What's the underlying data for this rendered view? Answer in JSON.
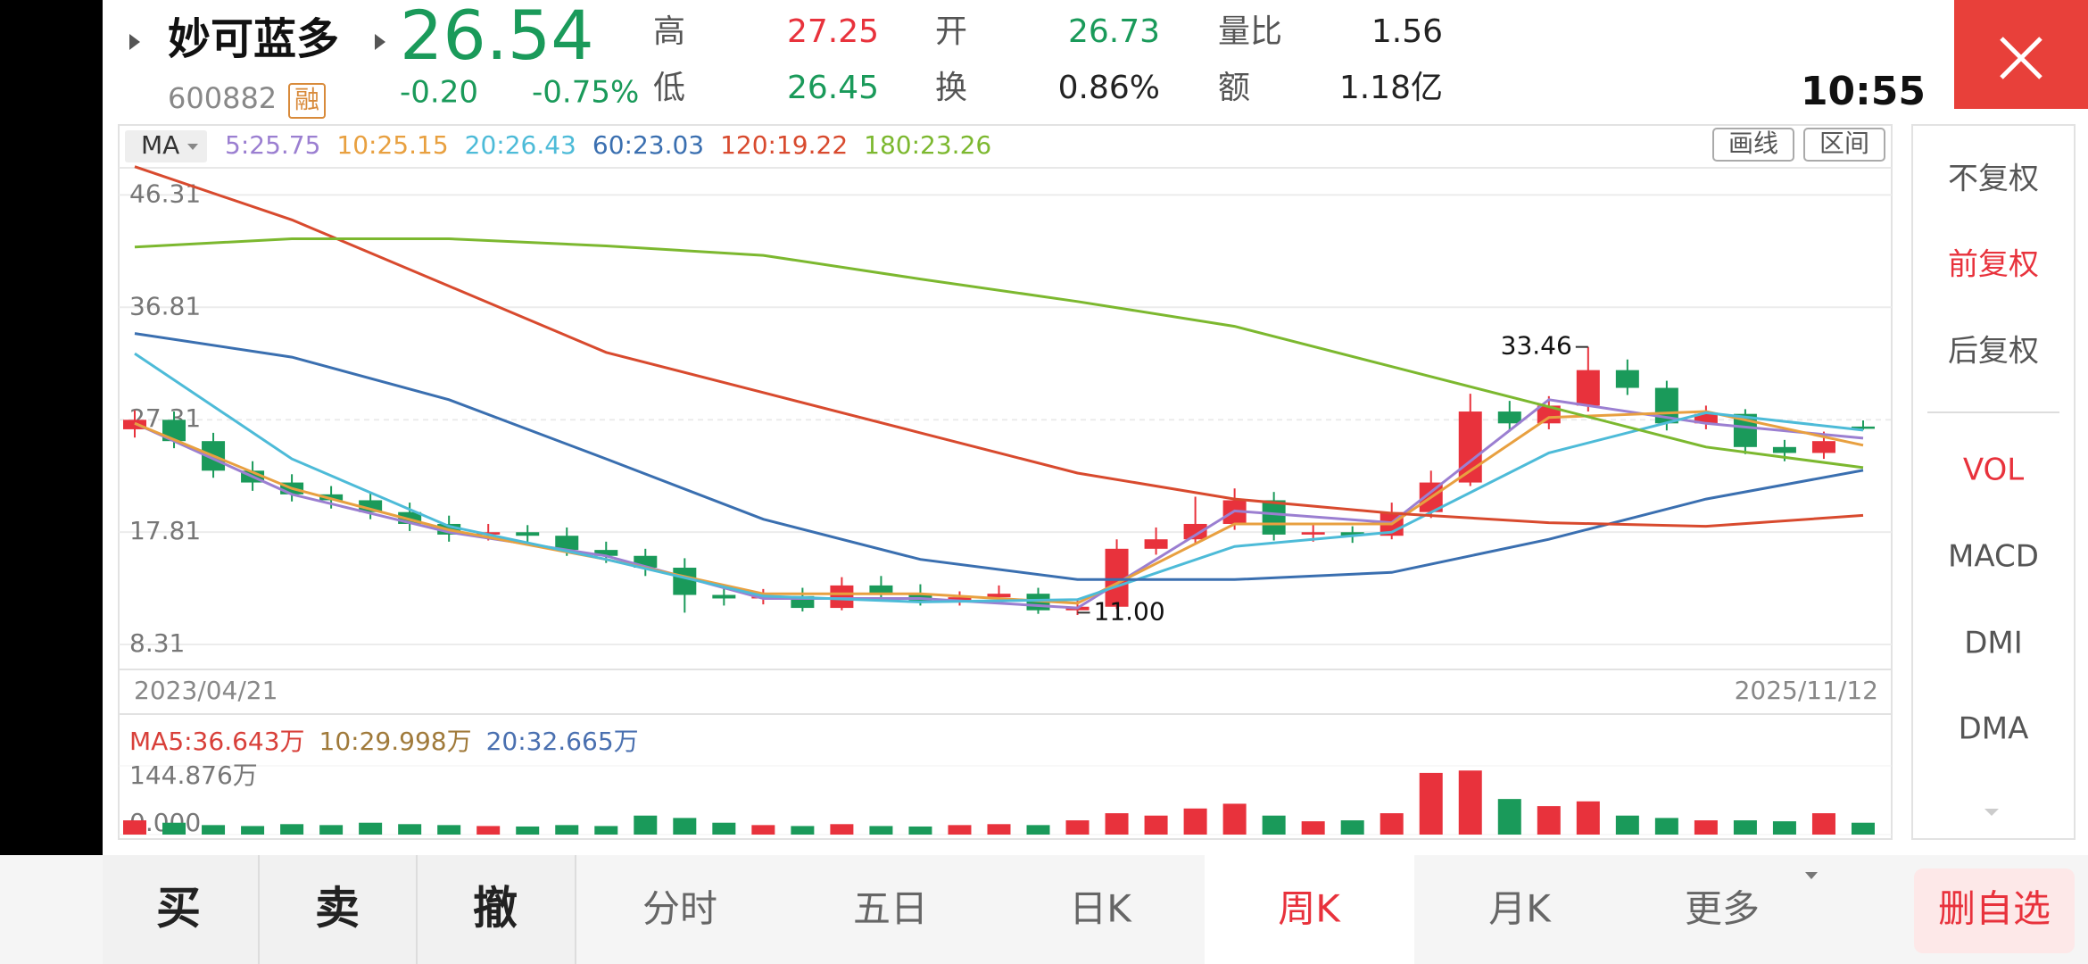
{
  "header": {
    "name": "妙可蓝多",
    "code": "600882",
    "badge": "融",
    "price": 26.54,
    "change": "-0.20",
    "change_pct": "-0.75%",
    "high_label": "高",
    "high": 27.25,
    "open_label": "开",
    "open": 26.73,
    "ratio_label": "量比",
    "ratio": 1.56,
    "low_label": "低",
    "low": 26.45,
    "turnover_label": "换",
    "turnover": "0.86%",
    "amount_label": "额",
    "amount": "1.18亿",
    "time": "10:55"
  },
  "chart_data": {
    "type": "candlestick",
    "ma_button": "MA",
    "tools": [
      "画线",
      "区间"
    ],
    "ylim": [
      6.2,
      48.6
    ],
    "yticks": [
      46.31,
      36.81,
      27.31,
      17.81,
      8.31
    ],
    "grid": true,
    "up_color": "#e8323c",
    "down_color": "#1a9a5a",
    "start_date": "2023/04/21",
    "end_date": "2025/11/12",
    "low_annotation": {
      "value": 11,
      "label": "11.00"
    },
    "candles": [
      {
        "open": 26.5,
        "close": 27.3,
        "high": 28.1,
        "low": 25.8
      },
      {
        "open": 27.3,
        "close": 25.5,
        "high": 28.0,
        "low": 24.9
      },
      {
        "open": 25.5,
        "close": 23,
        "high": 26.2,
        "low": 22.4
      },
      {
        "open": 23,
        "close": 22,
        "high": 23.8,
        "low": 21.3
      },
      {
        "open": 22,
        "close": 21,
        "high": 22.7,
        "low": 20.4
      },
      {
        "open": 21,
        "close": 20.5,
        "high": 21.7,
        "low": 19.8
      },
      {
        "open": 20.5,
        "close": 19.5,
        "high": 21.2,
        "low": 18.9
      },
      {
        "open": 19.5,
        "close": 18.5,
        "high": 20.3,
        "low": 17.9
      },
      {
        "open": 18.5,
        "close": 17.6,
        "high": 19.2,
        "low": 17
      },
      {
        "open": 17.6,
        "close": 17.8,
        "high": 18.5,
        "low": 17.1
      },
      {
        "open": 17.8,
        "close": 17.5,
        "high": 18.4,
        "low": 16.9
      },
      {
        "open": 17.5,
        "close": 16.3,
        "high": 18.2,
        "low": 15.8
      },
      {
        "open": 16.3,
        "close": 15.8,
        "high": 17,
        "low": 15.2
      },
      {
        "open": 15.8,
        "close": 14.8,
        "high": 16.4,
        "low": 14.1
      },
      {
        "open": 14.8,
        "close": 12.5,
        "high": 15.6,
        "low": 11
      },
      {
        "open": 12.5,
        "close": 12.2,
        "high": 13.2,
        "low": 11.6
      },
      {
        "open": 12.2,
        "close": 12.4,
        "high": 13,
        "low": 11.7
      },
      {
        "open": 12.4,
        "close": 11.4,
        "high": 13.1,
        "low": 11.1
      },
      {
        "open": 11.4,
        "close": 13.3,
        "high": 14,
        "low": 11.2
      },
      {
        "open": 13.3,
        "close": 12.6,
        "high": 14.1,
        "low": 12.1
      },
      {
        "open": 12.6,
        "close": 12,
        "high": 13.4,
        "low": 11.6
      },
      {
        "open": 12,
        "close": 12.3,
        "high": 12.8,
        "low": 11.6
      },
      {
        "open": 12.3,
        "close": 12.6,
        "high": 13.3,
        "low": 11.9
      },
      {
        "open": 12.6,
        "close": 11.2,
        "high": 13.1,
        "low": 10.9
      },
      {
        "open": 11.2,
        "close": 11.5,
        "high": 12.2,
        "low": 10.8
      },
      {
        "open": 11.5,
        "close": 16.4,
        "high": 17.2,
        "low": 11.3
      },
      {
        "open": 16.4,
        "close": 17.2,
        "high": 18.2,
        "low": 15.9
      },
      {
        "open": 17.2,
        "close": 18.5,
        "high": 20.8,
        "low": 16.8
      },
      {
        "open": 18.5,
        "close": 20.5,
        "high": 21.5,
        "low": 18
      },
      {
        "open": 20.5,
        "close": 17.6,
        "high": 21.2,
        "low": 17.1
      },
      {
        "open": 17.6,
        "close": 17.8,
        "high": 18.5,
        "low": 17
      },
      {
        "open": 17.8,
        "close": 17.5,
        "high": 18.3,
        "low": 16.9
      },
      {
        "open": 17.5,
        "close": 19.5,
        "high": 20.3,
        "low": 17.2
      },
      {
        "open": 19.5,
        "close": 22,
        "high": 23,
        "low": 19
      },
      {
        "open": 22,
        "close": 28,
        "high": 29.5,
        "low": 21.7
      },
      {
        "open": 28,
        "close": 27,
        "high": 28.9,
        "low": 26.3
      },
      {
        "open": 27,
        "close": 28.5,
        "high": 29.3,
        "low": 26.5
      },
      {
        "open": 28.5,
        "close": 31.5,
        "high": 33.46,
        "low": 28
      },
      {
        "open": 31.5,
        "close": 30,
        "high": 32.4,
        "low": 29.4
      },
      {
        "open": 30,
        "close": 27,
        "high": 30.6,
        "low": 26.4
      },
      {
        "open": 27,
        "close": 27.8,
        "high": 28.5,
        "low": 26.5
      },
      {
        "open": 27.8,
        "close": 25,
        "high": 28.2,
        "low": 24.4
      },
      {
        "open": 25,
        "close": 24.5,
        "high": 25.6,
        "low": 23.8
      },
      {
        "open": 24.5,
        "close": 25.5,
        "high": 26.3,
        "low": 24
      },
      {
        "open": 26.73,
        "close": 26.54,
        "high": 27.25,
        "low": 26.45
      }
    ],
    "ma_lines": [
      {
        "label": "5:25.75",
        "color": "#9b7fd1",
        "values": [
          27,
          21,
          17.8,
          15.8,
          12.2,
          12.2,
          11.4,
          19.6,
          18.6,
          29,
          27,
          25.75
        ]
      },
      {
        "label": "10:25.15",
        "color": "#e8a040",
        "values": [
          27,
          21.5,
          18,
          15.5,
          12.6,
          12.6,
          11.8,
          18.5,
          18.5,
          27.5,
          28,
          25.15
        ]
      },
      {
        "label": "20:26.43",
        "color": "#4dbbd8",
        "values": [
          32.9,
          24,
          18.3,
          15.5,
          12.4,
          11.9,
          12.1,
          16.6,
          17.8,
          24.5,
          27.9,
          26.43
        ]
      },
      {
        "label": "60:23.03",
        "color": "#3a6fb0",
        "values": [
          34.6,
          32.6,
          29,
          24,
          18.9,
          15.5,
          13.8,
          13.8,
          14.4,
          17.2,
          20.6,
          23.03
        ]
      },
      {
        "label": "120:19.22",
        "color": "#d84a2e",
        "values": [
          48.7,
          44.2,
          38.6,
          33,
          29.6,
          26.2,
          22.8,
          20.6,
          19.4,
          18.6,
          18.3,
          19.22
        ]
      },
      {
        "label": "180:23.26",
        "color": "#7cb82f",
        "values": [
          41.9,
          42.6,
          42.6,
          42,
          41.2,
          39.2,
          37.3,
          35.2,
          31.8,
          28.4,
          25,
          23.26
        ]
      }
    ],
    "volume": {
      "legend": [
        {
          "label": "MA5:36.643万",
          "color": "#d8403a"
        },
        {
          "label": "10:29.998万",
          "color": "#a07a3a"
        },
        {
          "label": "20:32.665万",
          "color": "#4a70b0"
        }
      ],
      "ylim": [
        0,
        144.876
      ],
      "yticks": [
        {
          "value": 144.876,
          "label": "144.876万"
        },
        {
          "value": 0,
          "label": "0.000"
        }
      ],
      "values": [
        30,
        25,
        20,
        18,
        22,
        20,
        25,
        22,
        20,
        18,
        17,
        20,
        18,
        40,
        35,
        25,
        20,
        18,
        22,
        18,
        17,
        20,
        22,
        20,
        30,
        45,
        40,
        55,
        65,
        40,
        28,
        30,
        45,
        130,
        135,
        75,
        60,
        70,
        40,
        35,
        30,
        30,
        28,
        45,
        25
      ]
    }
  },
  "side_menu": [
    "不复权",
    "前复权",
    "后复权",
    "VOL",
    "MACD",
    "DMI",
    "DMA"
  ],
  "bottom_bar": [
    "买",
    "卖",
    "撤",
    "分时",
    "五日",
    "日K",
    "周K",
    "月K",
    "更多",
    "删自选"
  ]
}
